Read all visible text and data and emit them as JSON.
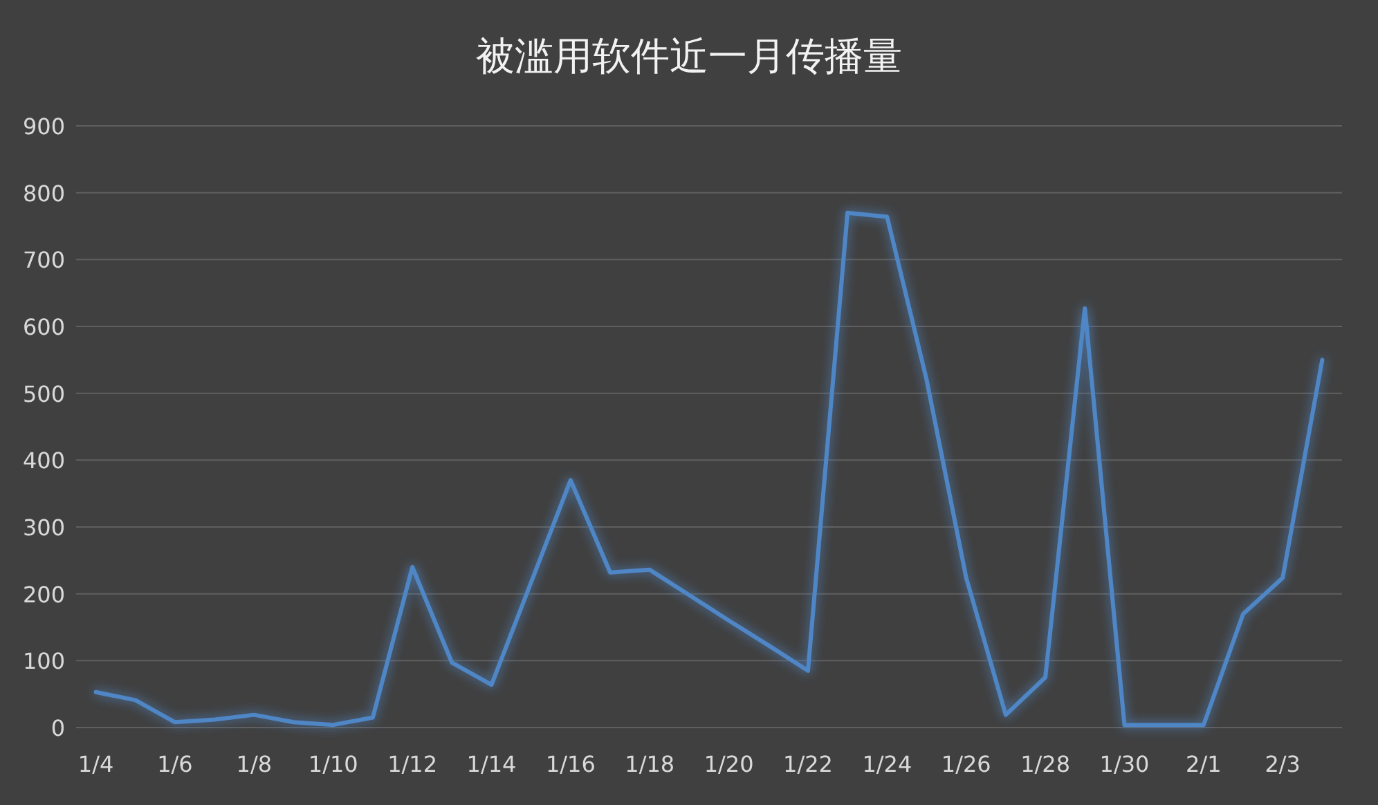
{
  "chart_data": {
    "type": "line",
    "title": "被滥用软件近一月传播量",
    "categories": [
      "1/4",
      null,
      "1/6",
      null,
      "1/8",
      null,
      "1/10",
      null,
      "1/12",
      null,
      "1/14",
      null,
      "1/16",
      null,
      "1/18",
      null,
      "1/20",
      null,
      "1/22",
      null,
      "1/24",
      null,
      "1/26",
      null,
      "1/28",
      null,
      "1/30",
      null,
      "2/1",
      null,
      "2/3",
      null
    ],
    "series": [
      {
        "color": "#4f86c6",
        "values": [
          53,
          41,
          8,
          12,
          19,
          8,
          4,
          15,
          240,
          97,
          64,
          217,
          370,
          232,
          236,
          198,
          160,
          123,
          85,
          770,
          764,
          520,
          224,
          19,
          75,
          627,
          4,
          4,
          4,
          170,
          224,
          550
        ]
      }
    ],
    "ylim": [
      0,
      900
    ],
    "yticks": [
      0,
      100,
      200,
      300,
      400,
      500,
      600,
      700,
      800,
      900
    ],
    "grid": "y"
  }
}
